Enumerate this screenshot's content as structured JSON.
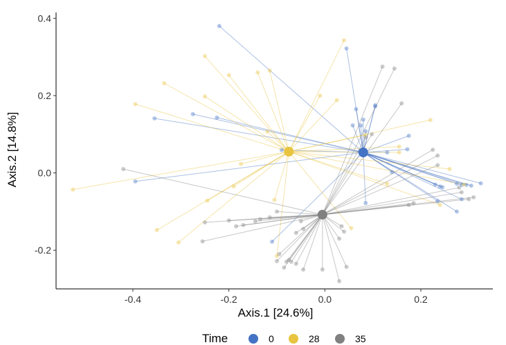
{
  "chart_data": {
    "type": "scatter",
    "xlabel": "Axis.1 [24.6%]",
    "ylabel": "Axis.2 [14.8%]",
    "xlim": [
      -0.56,
      0.35
    ],
    "ylim": [
      -0.3,
      0.415
    ],
    "xticks": [
      -0.4,
      -0.2,
      0.0,
      0.2
    ],
    "xtick_labels": [
      "-0.4",
      "-0.2",
      "0.0",
      "0.2"
    ],
    "yticks": [
      -0.2,
      0.0,
      0.2,
      0.4
    ],
    "ytick_labels": [
      "-0.2",
      "0.0",
      "0.2",
      "0.4"
    ],
    "grid": false,
    "legend": {
      "title": "Time",
      "position": "bottom",
      "labels": [
        "0",
        "28",
        "35"
      ]
    },
    "series": [
      {
        "name": "0",
        "color": "#4472C4",
        "centroid": [
          0.08,
          0.053
        ],
        "points": [
          [
            -0.22,
            0.38
          ],
          [
            0.045,
            0.322
          ],
          [
            -0.275,
            0.152
          ],
          [
            -0.355,
            0.141
          ],
          [
            -0.225,
            0.143
          ],
          [
            -0.395,
            -0.022
          ],
          [
            -0.09,
            0.059
          ],
          [
            0.065,
            0.165
          ],
          [
            0.08,
            0.138
          ],
          [
            0.075,
            0.123
          ],
          [
            0.058,
            0.123
          ],
          [
            0.105,
            0.175
          ],
          [
            0.105,
            0.172
          ],
          [
            0.085,
            0.108
          ],
          [
            0.175,
            0.096
          ],
          [
            0.172,
            0.061
          ],
          [
            0.13,
            0.053
          ],
          [
            0.14,
            0.002
          ],
          [
            0.23,
            -0.03
          ],
          [
            0.24,
            -0.035
          ],
          [
            0.245,
            -0.037
          ],
          [
            0.235,
            -0.073
          ],
          [
            0.275,
            -0.028
          ],
          [
            0.285,
            -0.031
          ],
          [
            0.295,
            -0.031
          ],
          [
            0.305,
            -0.033
          ],
          [
            0.325,
            -0.027
          ],
          [
            0.285,
            -0.068
          ],
          [
            0.275,
            -0.1
          ],
          [
            0.085,
            -0.078
          ],
          [
            -0.11,
            -0.178
          ]
        ]
      },
      {
        "name": "28",
        "color": "#E8C440",
        "centroid": [
          -0.075,
          0.055
        ],
        "points": [
          [
            -0.525,
            -0.043
          ],
          [
            -0.395,
            0.178
          ],
          [
            -0.335,
            0.232
          ],
          [
            -0.25,
            0.302
          ],
          [
            -0.25,
            0.198
          ],
          [
            -0.2,
            0.253
          ],
          [
            -0.14,
            0.26
          ],
          [
            -0.115,
            0.265
          ],
          [
            0.04,
            0.343
          ],
          [
            -0.01,
            0.2
          ],
          [
            0.025,
            0.188
          ],
          [
            -0.12,
            0.107
          ],
          [
            -0.19,
            -0.035
          ],
          [
            -0.245,
            -0.072
          ],
          [
            -0.35,
            -0.148
          ],
          [
            -0.305,
            -0.18
          ],
          [
            -0.175,
            0.023
          ],
          [
            -0.105,
            -0.07
          ],
          [
            -0.1,
            -0.215
          ],
          [
            0.085,
            0.098
          ],
          [
            0.155,
            0.068
          ],
          [
            0.22,
            0.137
          ],
          [
            0.26,
            0.01
          ],
          [
            0.29,
            -0.03
          ],
          [
            0.24,
            -0.083
          ],
          [
            0.13,
            -0.028
          ],
          [
            0.055,
            -0.143
          ],
          [
            0.155,
            0.053
          ]
        ]
      },
      {
        "name": "35",
        "color": "#808080",
        "centroid": [
          -0.005,
          -0.108
        ],
        "points": [
          [
            -0.42,
            0.01
          ],
          [
            -0.25,
            -0.128
          ],
          [
            -0.255,
            -0.177
          ],
          [
            -0.2,
            -0.123
          ],
          [
            -0.185,
            -0.138
          ],
          [
            -0.17,
            -0.135
          ],
          [
            -0.145,
            -0.125
          ],
          [
            -0.135,
            -0.12
          ],
          [
            -0.115,
            -0.115
          ],
          [
            -0.1,
            -0.1
          ],
          [
            -0.095,
            -0.21
          ],
          [
            -0.1,
            -0.228
          ],
          [
            -0.08,
            -0.23
          ],
          [
            -0.075,
            -0.225
          ],
          [
            -0.07,
            -0.23
          ],
          [
            -0.06,
            -0.235
          ],
          [
            -0.045,
            -0.25
          ],
          [
            -0.085,
            -0.245
          ],
          [
            -0.05,
            -0.125
          ],
          [
            -0.06,
            -0.155
          ],
          [
            0.035,
            -0.138
          ],
          [
            0.04,
            -0.152
          ],
          [
            0.03,
            -0.17
          ],
          [
            0.045,
            -0.243
          ],
          [
            0.03,
            -0.28
          ],
          [
            -0.005,
            -0.25
          ],
          [
            0.12,
            0.275
          ],
          [
            0.145,
            0.27
          ],
          [
            0.085,
            0.092
          ],
          [
            0.098,
            0.1
          ],
          [
            0.16,
            0.18
          ],
          [
            0.225,
            0.06
          ],
          [
            0.235,
            0.045
          ],
          [
            0.235,
            0.02
          ],
          [
            0.28,
            -0.038
          ],
          [
            0.285,
            -0.05
          ],
          [
            0.3,
            -0.068
          ],
          [
            0.31,
            -0.063
          ],
          [
            0.175,
            -0.083
          ],
          [
            0.185,
            -0.078
          ],
          [
            -0.045,
            -0.145
          ]
        ]
      }
    ]
  }
}
